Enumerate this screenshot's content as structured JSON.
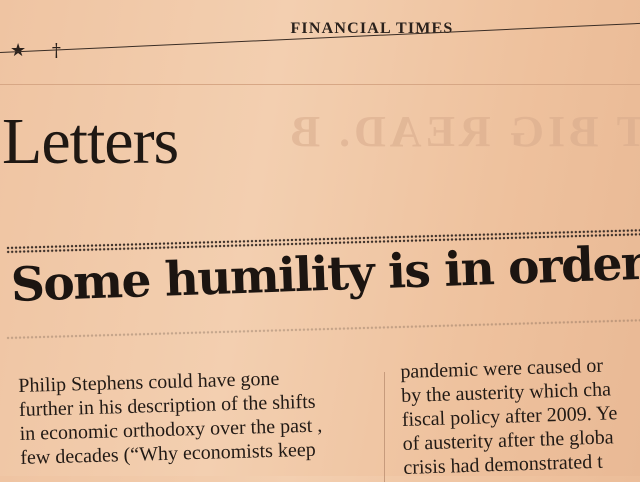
{
  "header": {
    "masthead": "FINANCIAL TIMES",
    "edition_marks": "★ †"
  },
  "section": {
    "title": "Letters",
    "bleed_through": "T BIG READ. B"
  },
  "headline": "Some humility is in order",
  "columns": {
    "left": [
      "Philip Stephens could have gone",
      "further in his description of the shifts",
      "in economic orthodoxy over the past ,",
      "few decades (“Why economists keep"
    ],
    "right": [
      "pandemic were caused or",
      "by the austerity which cha",
      "fiscal policy after 2009. Ye",
      "of austerity after the globa",
      "crisis had demonstrated t"
    ]
  }
}
